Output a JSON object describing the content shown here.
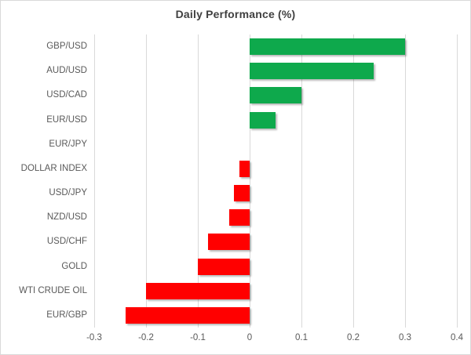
{
  "chart_data": {
    "type": "bar",
    "orientation": "horizontal",
    "title": "Daily Performance (%)",
    "categories": [
      "GBP/USD",
      "AUD/USD",
      "USD/CAD",
      "EUR/USD",
      "EUR/JPY",
      "DOLLAR INDEX",
      "USD/JPY",
      "NZD/USD",
      "USD/CHF",
      "GOLD",
      "WTI CRUDE OIL",
      "EUR/GBP"
    ],
    "values": [
      0.3,
      0.24,
      0.1,
      0.05,
      0.0,
      -0.02,
      -0.03,
      -0.04,
      -0.08,
      -0.1,
      -0.2,
      -0.24
    ],
    "xlabel": "",
    "ylabel": "",
    "xlim": [
      -0.3,
      0.4
    ],
    "xticks": [
      -0.3,
      -0.2,
      -0.1,
      0,
      0.1,
      0.2,
      0.3,
      0.4
    ],
    "xtick_labels": [
      "-0.3",
      "-0.2",
      "-0.1",
      "0",
      "0.1",
      "0.2",
      "0.3",
      "0.4"
    ],
    "grid": true,
    "legend": false,
    "colors": {
      "positive": "#0EA94C",
      "negative": "#FF0000",
      "gridline": "#D9D9D9",
      "title_text": "#404040",
      "axis_text": "#595959",
      "background": "#FFFFFF",
      "border": "#D9D9D9"
    }
  }
}
